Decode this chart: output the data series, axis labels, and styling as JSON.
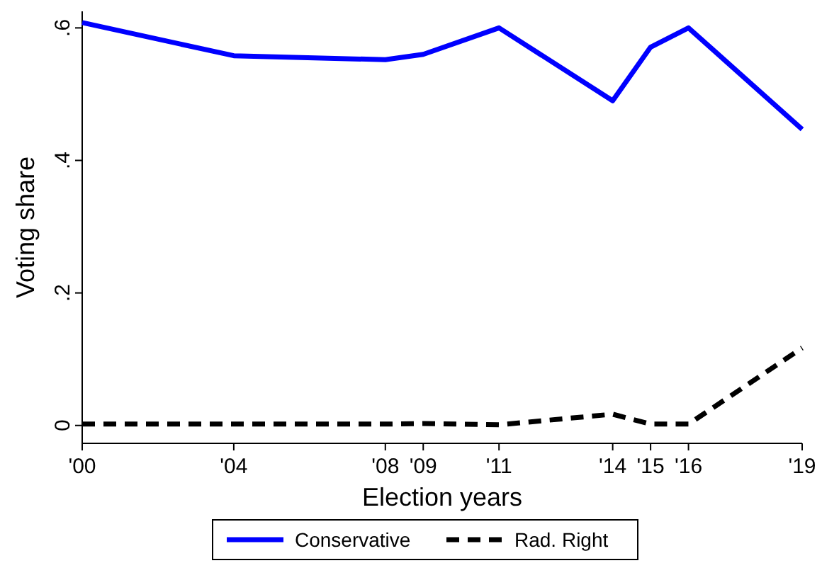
{
  "chart_data": {
    "type": "line",
    "xlabel": "Election years",
    "ylabel": "Voting share",
    "x": [
      2000,
      2004,
      2008,
      2009,
      2011,
      2014,
      2015,
      2016,
      2019
    ],
    "xlim": [
      2000,
      2019
    ],
    "xticks": [
      {
        "value": 2000,
        "label": "'00"
      },
      {
        "value": 2004,
        "label": "'04"
      },
      {
        "value": 2008,
        "label": "'08"
      },
      {
        "value": 2009,
        "label": "'09"
      },
      {
        "value": 2011,
        "label": "'11"
      },
      {
        "value": 2014,
        "label": "'14"
      },
      {
        "value": 2015,
        "label": "'15"
      },
      {
        "value": 2016,
        "label": "'16"
      },
      {
        "value": 2019,
        "label": "'19"
      }
    ],
    "ylim": [
      -0.027,
      0.625
    ],
    "yticks": [
      {
        "value": 0,
        "label": "0"
      },
      {
        "value": 0.2,
        "label": ".2"
      },
      {
        "value": 0.4,
        "label": ".4"
      },
      {
        "value": 0.6,
        "label": ".6"
      }
    ],
    "grid": false,
    "legend": "bottom",
    "marker": "none",
    "series": [
      {
        "name": "Conservative",
        "color": "#0000ff",
        "line_style": "solid",
        "values": [
          0.608,
          0.558,
          0.552,
          0.56,
          0.6,
          0.49,
          0.571,
          0.6,
          0.447
        ]
      },
      {
        "name": "Rad. Right",
        "color": "#000000",
        "line_style": "dashed",
        "values": [
          0.002,
          0.002,
          0.002,
          0.003,
          0.001,
          0.017,
          0.002,
          0.002,
          0.117
        ]
      }
    ]
  }
}
